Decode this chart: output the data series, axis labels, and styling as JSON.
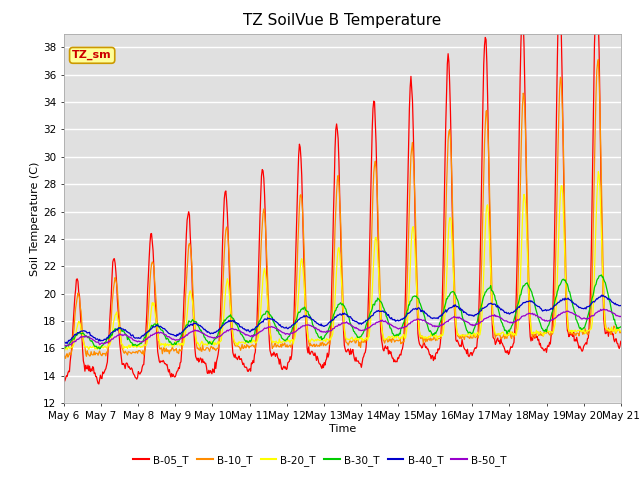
{
  "title": "TZ SoilVue B Temperature",
  "xlabel": "Time",
  "ylabel": "Soil Temperature (C)",
  "ylim": [
    12,
    39
  ],
  "yticks": [
    12,
    14,
    16,
    18,
    20,
    22,
    24,
    26,
    28,
    30,
    32,
    34,
    36,
    38
  ],
  "n_days": 15,
  "start_day": 6,
  "series": [
    "B-05_T",
    "B-10_T",
    "B-20_T",
    "B-30_T",
    "B-40_T",
    "B-50_T"
  ],
  "colors": [
    "#ff0000",
    "#ff8c00",
    "#ffff00",
    "#00cc00",
    "#0000cc",
    "#9900cc"
  ],
  "legend_box_facecolor": "#ffff99",
  "legend_box_edgecolor": "#cc9900",
  "annotation_text": "TZ_sm",
  "annotation_color": "#cc0000",
  "plot_bg_color": "#e0e0e0",
  "grid_color": "#ffffff",
  "title_fontsize": 11,
  "axis_fontsize": 8,
  "tick_fontsize": 7.5
}
